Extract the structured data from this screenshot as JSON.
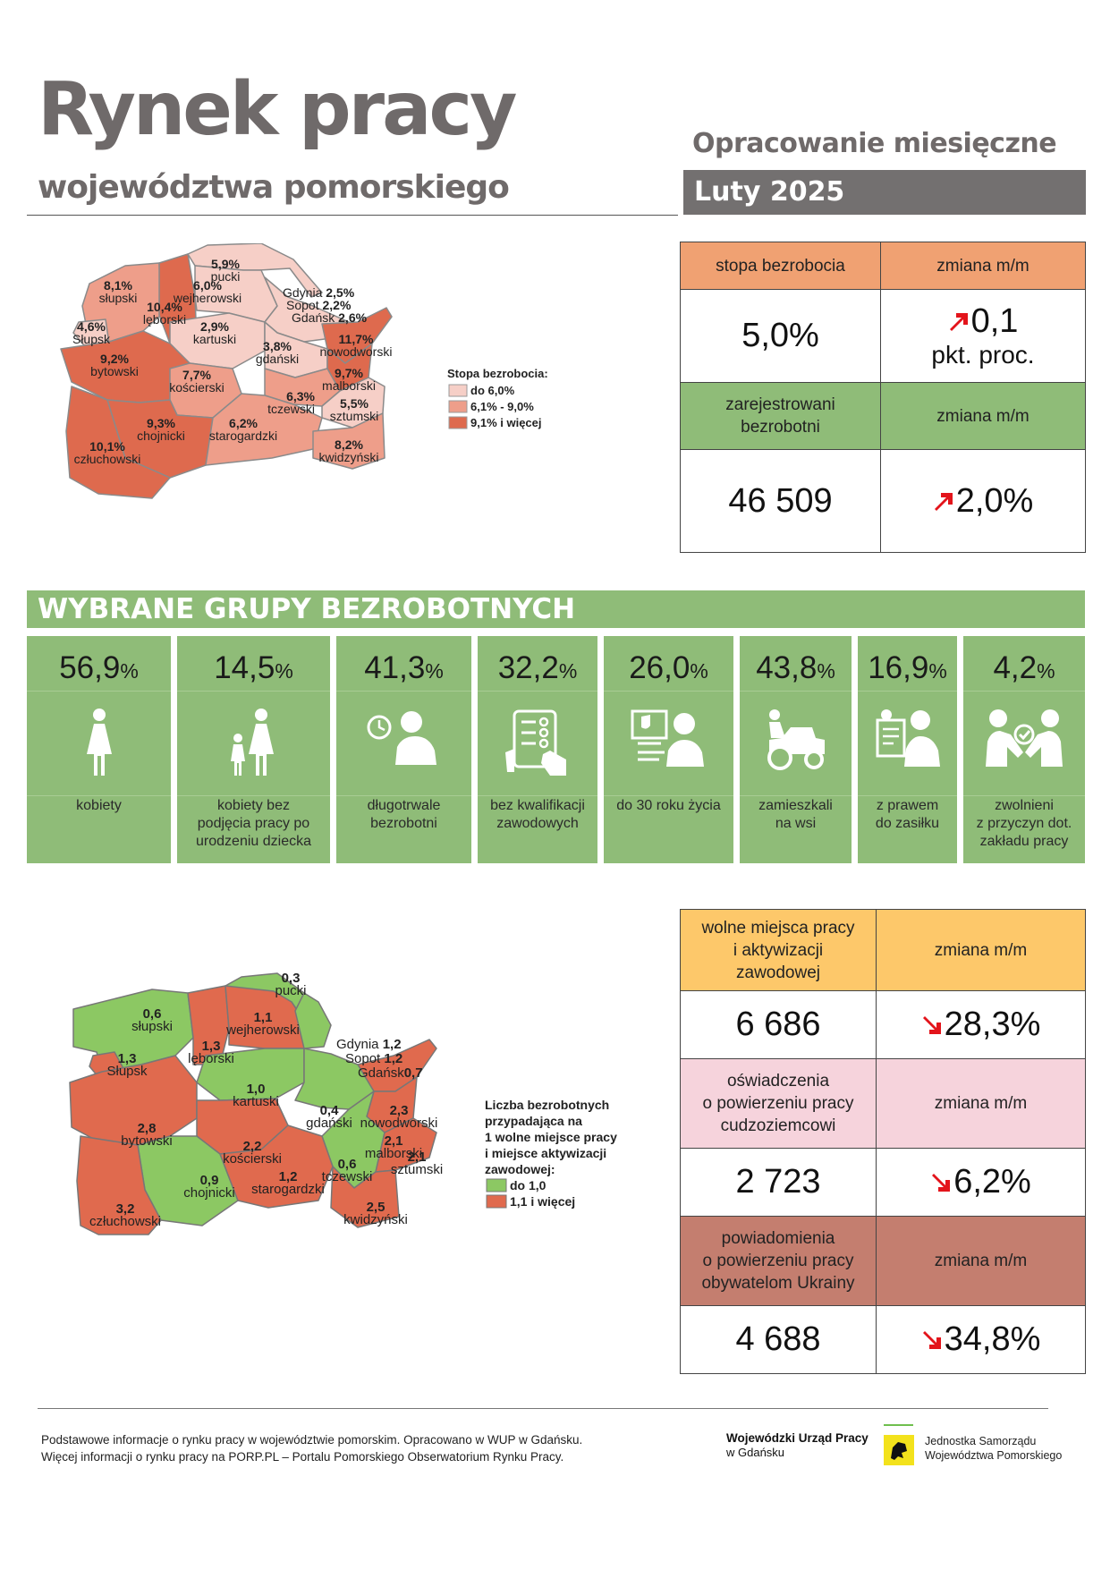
{
  "header": {
    "title": "Rynek pracy",
    "subtitle": "województwa pomorskiego",
    "report_type": "Opracowanie miesięczne",
    "period": "Luty 2025"
  },
  "map_unemployment": {
    "legend_title": "Stopa bezrobocia:",
    "legend": [
      {
        "label": "do 6,0%",
        "color": "#f6cfc7"
      },
      {
        "label": "6,1% - 9,0%",
        "color": "#ee9e8a"
      },
      {
        "label": "9,1% i więcej",
        "color": "#de6a4e"
      }
    ],
    "regions": [
      {
        "name": "pucki",
        "value": "5,9%"
      },
      {
        "name": "słupski",
        "value": "8,1%"
      },
      {
        "name": "wejherowski",
        "value": "6,0%"
      },
      {
        "name": "lęborski",
        "value": "10,4%"
      },
      {
        "name": "Słupsk",
        "value": "4,6%"
      },
      {
        "name": "Gdynia",
        "value": "2,5%"
      },
      {
        "name": "Sopot",
        "value": "2,2%"
      },
      {
        "name": "Gdańsk",
        "value": "2,6%"
      },
      {
        "name": "kartuski",
        "value": "2,9%"
      },
      {
        "name": "nowodworski",
        "value": "11,7%"
      },
      {
        "name": "gdański",
        "value": "3,8%"
      },
      {
        "name": "bytowski",
        "value": "9,2%"
      },
      {
        "name": "kościerski",
        "value": "7,7%"
      },
      {
        "name": "malborski",
        "value": "9,7%"
      },
      {
        "name": "tczewski",
        "value": "6,3%"
      },
      {
        "name": "sztumski",
        "value": "5,5%"
      },
      {
        "name": "chojnicki",
        "value": "9,3%"
      },
      {
        "name": "starogardzki",
        "value": "6,2%"
      },
      {
        "name": "człuchowski",
        "value": "10,1%"
      },
      {
        "name": "kwidzyński",
        "value": "8,2%"
      }
    ]
  },
  "stats_top": {
    "rate_label": "stopa bezrobocia",
    "rate_change_label": "zmiana m/m",
    "rate_value": "5,0%",
    "rate_change_value": "0,1",
    "rate_change_unit": "pkt. proc.",
    "registered_label_1": "zarejestrowani",
    "registered_label_2": "bezrobotni",
    "registered_change_label": "zmiana m/m",
    "registered_value": "46 509",
    "registered_change_value": "2,0%",
    "colors": {
      "header_orange": "#f0a172",
      "header_green": "#8fbc78",
      "arrow_up": "#e3141b"
    }
  },
  "groups": {
    "title": "WYBRANE GRUPY BEZROBOTNYCH",
    "unit": "%",
    "items": [
      {
        "value": "56,9",
        "cap1": "kobiety",
        "cap2": "",
        "cap3": "",
        "icon": "woman-icon"
      },
      {
        "value": "14,5",
        "cap1": "kobiety bez",
        "cap2": "podjęcia pracy po",
        "cap3": "urodzeniu dziecka",
        "icon": "mother-child-icon"
      },
      {
        "value": "41,3",
        "cap1": "długotrwale",
        "cap2": "bezrobotni",
        "cap3": "",
        "icon": "clock-person-icon"
      },
      {
        "value": "32,2",
        "cap1": "bez kwalifikacji",
        "cap2": "zawodowych",
        "cap3": "",
        "icon": "tablet-checklist-icon"
      },
      {
        "value": "26,0",
        "cap1": "do 30 roku życia",
        "cap2": "",
        "cap3": "",
        "icon": "young-person-computer-icon"
      },
      {
        "value": "43,8",
        "cap1": "zamieszkali",
        "cap2": "na wsi",
        "cap3": "",
        "icon": "tractor-icon"
      },
      {
        "value": "16,9",
        "cap1": "z prawem",
        "cap2": "do zasiłku",
        "cap3": "",
        "icon": "benefit-document-icon"
      },
      {
        "value": "4,2",
        "cap1": "zwolnieni",
        "cap2": "z przyczyn dot.",
        "cap3": "zakładu pracy",
        "icon": "handshake-people-icon"
      }
    ]
  },
  "map_offers": {
    "legend_title_1": "Liczba bezrobotnych",
    "legend_title_2": "przypadająca na",
    "legend_title_3": "1 wolne miejsce pracy",
    "legend_title_4": "i miejsce aktywizacji",
    "legend_title_5": "zawodowej:",
    "legend": [
      {
        "label": "do 1,0",
        "color": "#8cc863"
      },
      {
        "label": "1,1 i więcej",
        "color": "#e06a4e"
      }
    ],
    "regions": [
      {
        "name": "pucki",
        "value": "0,3"
      },
      {
        "name": "słupski",
        "value": "0,6"
      },
      {
        "name": "wejherowski",
        "value": "1,1"
      },
      {
        "name": "lęborski",
        "value": "1,3"
      },
      {
        "name": "Słupsk",
        "value": "1,3"
      },
      {
        "name": "Gdynia",
        "value": "1,2"
      },
      {
        "name": "Sopot",
        "value": "1,2"
      },
      {
        "name": "Gdańsk",
        "value": "0,7"
      },
      {
        "name": "kartuski",
        "value": "1,0"
      },
      {
        "name": "gdański",
        "value": "0,4"
      },
      {
        "name": "nowodworski",
        "value": "2,3"
      },
      {
        "name": "bytowski",
        "value": "2,8"
      },
      {
        "name": "kościerski",
        "value": "2,2"
      },
      {
        "name": "malborski",
        "value": "2,1"
      },
      {
        "name": "tczewski",
        "value": "0,6"
      },
      {
        "name": "sztumski",
        "value": "2,1"
      },
      {
        "name": "chojnicki",
        "value": "0,9"
      },
      {
        "name": "starogardzki",
        "value": "1,2"
      },
      {
        "name": "człuchowski",
        "value": "3,2"
      },
      {
        "name": "kwidzyński",
        "value": "2,5"
      }
    ]
  },
  "stats_bottom": {
    "offers_label_1": "wolne miejsca pracy",
    "offers_label_2": "i aktywizacji",
    "offers_label_3": "zawodowej",
    "offers_change_label": "zmiana m/m",
    "offers_value": "6 686",
    "offers_change_value": "28,3%",
    "declarations_label_1": "oświadczenia",
    "declarations_label_2": "o powierzeniu pracy",
    "declarations_label_3": "cudzoziemcowi",
    "declarations_change_label": "zmiana m/m",
    "declarations_value": "2 723",
    "declarations_change_value": "6,2%",
    "notifications_label_1": "powiadomienia",
    "notifications_label_2": "o powierzeniu pracy",
    "notifications_label_3": "obywatelom Ukrainy",
    "notifications_change_label": "zmiana m/m",
    "notifications_value": "4 688",
    "notifications_change_value": "34,8%",
    "colors": {
      "header_yellow": "#fdc86a",
      "header_pink": "#f6d3dc",
      "header_brown": "#c47e6f",
      "arrow_down": "#e3141b"
    }
  },
  "footer": {
    "line1": "Podstawowe informacje o rynku pracy w województwie pomorskim. Opracowano w WUP w Gdańsku.",
    "line2": "Więcej informacji o rynku pracy na PORP.PL – Portalu Pomorskiego Obserwatorium Rynku Pracy.",
    "logo_wup_1": "Wojewódzki Urząd Pracy",
    "logo_wup_2": "w Gdańsku",
    "logo_js_1": "Jednostka Samorządu",
    "logo_js_2": "Województwa Pomorskiego"
  }
}
